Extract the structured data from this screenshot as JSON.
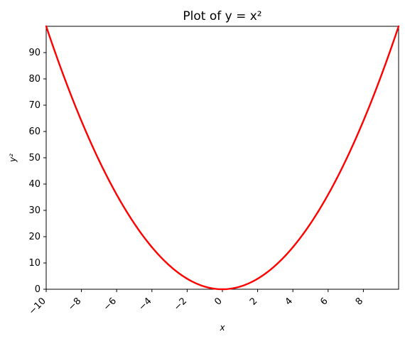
{
  "chart_data": {
    "type": "line",
    "title": "Plot of y = x²",
    "xlabel": "x",
    "ylabel": "y²",
    "xlim": [
      -10,
      10
    ],
    "ylim": [
      0,
      100
    ],
    "grid": false,
    "x_ticks": [
      -10,
      -8,
      -6,
      -4,
      -2,
      0,
      2,
      4,
      6,
      8
    ],
    "x_tick_labels": [
      "−10",
      "−8",
      "−6",
      "−4",
      "−2",
      "0",
      "2",
      "4",
      "6",
      "8"
    ],
    "y_ticks": [
      0,
      10,
      20,
      30,
      40,
      50,
      60,
      70,
      80,
      90
    ],
    "y_tick_labels": [
      "0",
      "10",
      "20",
      "30",
      "40",
      "50",
      "60",
      "70",
      "80",
      "90"
    ],
    "series": [
      {
        "color": "#ff0000",
        "function": "x^2",
        "x_range": [
          -10,
          10
        ]
      }
    ]
  }
}
